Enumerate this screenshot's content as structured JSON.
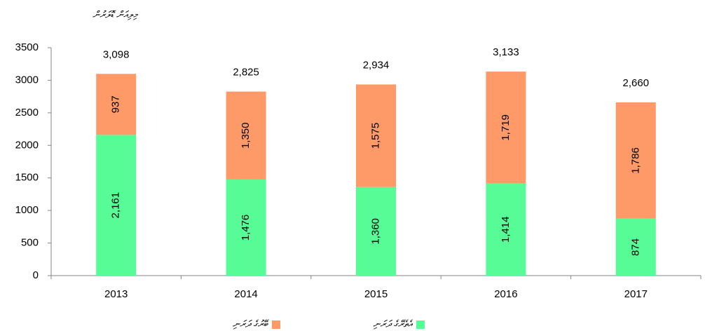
{
  "chart_data": {
    "type": "stacked_bar",
    "title": "މިލިއަން ޑޮލަރުން",
    "categories": [
      "2013",
      "2014",
      "2015",
      "2016",
      "2017"
    ],
    "series": [
      {
        "name": "އެތެރޭގެ ދަރަނި",
        "color": "#58fc96",
        "values": [
          2161,
          1476,
          1360,
          1414,
          874
        ],
        "value_labels": [
          "2,161",
          "1,476",
          "1,360",
          "1,414",
          "874"
        ]
      },
      {
        "name": "ބޭރުގެ ދަރަނި",
        "color": "#fd9a68",
        "values": [
          937,
          1350,
          1575,
          1719,
          1786
        ],
        "value_labels": [
          "937",
          "1,350",
          "1,575",
          "1,719",
          "1,786"
        ]
      }
    ],
    "totals": [
      3098,
      2825,
      2934,
      3133,
      2660
    ],
    "totals_labels": [
      "3,098",
      "2,825",
      "2,934",
      "3,133",
      "2,660"
    ],
    "ylim": [
      0,
      3500
    ],
    "yticks": [
      0,
      500,
      1000,
      1500,
      2000,
      2500,
      3000,
      3500
    ],
    "grid": false,
    "legend": "bottom"
  }
}
